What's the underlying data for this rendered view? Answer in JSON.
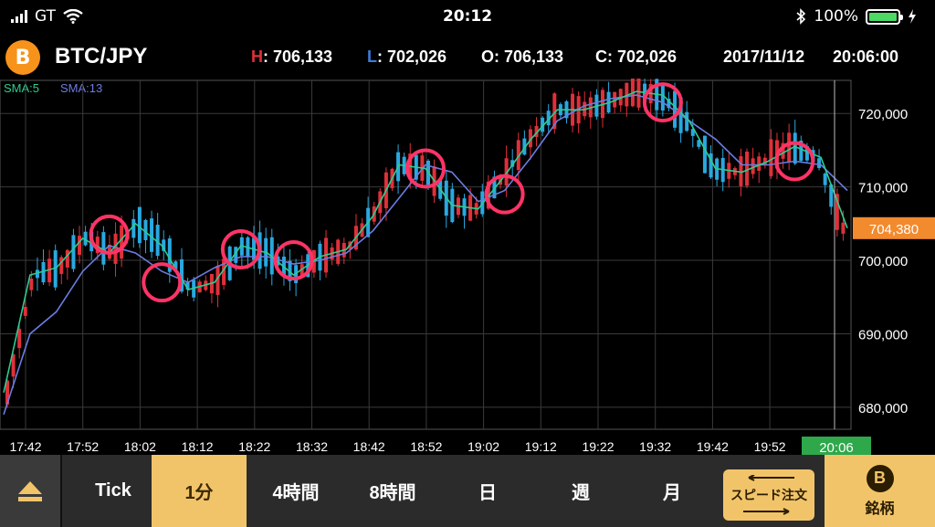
{
  "status_bar": {
    "carrier": "GT",
    "time": "20:12",
    "battery": "100%",
    "battery_level": 1.0
  },
  "header": {
    "coin_symbol": "B",
    "pair": "BTC/JPY",
    "high_label": "H",
    "high_value": ": 706,133",
    "low_label": "L",
    "low_value": ": 702,026",
    "open_text": "O: 706,133",
    "close_text": "C: 702,026",
    "date": "2017/11/12",
    "time": "20:06:00",
    "colors": {
      "high": "#e0303a",
      "low": "#3e7bd8"
    }
  },
  "indicators": {
    "sma5": "SMA:5",
    "sma13": "SMA:13",
    "colors": {
      "sma5": "#2ecc8f",
      "sma13": "#6b7de0"
    }
  },
  "chart_data": {
    "type": "line",
    "title": "",
    "x": [
      "17:42",
      "17:52",
      "18:02",
      "18:12",
      "18:22",
      "18:32",
      "18:42",
      "18:52",
      "19:02",
      "19:12",
      "19:22",
      "19:32",
      "19:42",
      "19:52",
      "20:06"
    ],
    "y_ticks": [
      "720,000",
      "710,000",
      "700,000",
      "690,000",
      "680,000"
    ],
    "ylim": [
      677000,
      724500
    ],
    "current_price": "704,380",
    "current_time": "20:06",
    "sma5_points": [
      [
        0,
        682000
      ],
      [
        1,
        698000
      ],
      [
        2,
        699000
      ],
      [
        3,
        703000
      ],
      [
        4,
        701000
      ],
      [
        5,
        705000
      ],
      [
        6,
        702000
      ],
      [
        7,
        696000
      ],
      [
        8,
        697000
      ],
      [
        9,
        702000
      ],
      [
        10,
        701000
      ],
      [
        11,
        698000
      ],
      [
        12,
        700500
      ],
      [
        13,
        701500
      ],
      [
        14,
        706000
      ],
      [
        15,
        713000
      ],
      [
        16,
        712500
      ],
      [
        17,
        707500
      ],
      [
        18,
        707000
      ],
      [
        19,
        711500
      ],
      [
        20,
        716500
      ],
      [
        21,
        720500
      ],
      [
        22,
        720500
      ],
      [
        23,
        721500
      ],
      [
        24,
        723000
      ],
      [
        25,
        722500
      ],
      [
        26,
        719000
      ],
      [
        27,
        712500
      ],
      [
        28,
        712000
      ],
      [
        29,
        713500
      ],
      [
        30,
        715500
      ],
      [
        31,
        714000
      ],
      [
        32,
        704380
      ]
    ],
    "sma13_points": [
      [
        0,
        679000
      ],
      [
        1,
        690000
      ],
      [
        2,
        693000
      ],
      [
        3,
        698500
      ],
      [
        4,
        702000
      ],
      [
        5,
        701000
      ],
      [
        6,
        698500
      ],
      [
        7,
        697000
      ],
      [
        8,
        699000
      ],
      [
        9,
        700500
      ],
      [
        10,
        700500
      ],
      [
        11,
        699500
      ],
      [
        12,
        700000
      ],
      [
        13,
        701000
      ],
      [
        14,
        704000
      ],
      [
        15,
        708500
      ],
      [
        16,
        713000
      ],
      [
        17,
        712000
      ],
      [
        18,
        708000
      ],
      [
        19,
        709500
      ],
      [
        20,
        714000
      ],
      [
        21,
        719000
      ],
      [
        22,
        721000
      ],
      [
        23,
        722000
      ],
      [
        24,
        722500
      ],
      [
        25,
        721500
      ],
      [
        26,
        719000
      ],
      [
        27,
        716500
      ],
      [
        28,
        713000
      ],
      [
        29,
        713000
      ],
      [
        30,
        713500
      ],
      [
        31,
        713000
      ],
      [
        32,
        709500
      ]
    ],
    "highlight_circles": [
      [
        4,
        703500
      ],
      [
        6,
        697000
      ],
      [
        9,
        701500
      ],
      [
        11,
        700000
      ],
      [
        16,
        712500
      ],
      [
        19,
        709000
      ],
      [
        25,
        721500
      ],
      [
        30,
        713500
      ]
    ],
    "colors": {
      "up": "#e0303a",
      "down": "#29a8e0",
      "grid": "#3a3a3a",
      "circle": "#ff3366",
      "price_tag": "#f28a2e",
      "time_tag": "#2ea84a"
    }
  },
  "toolbar": {
    "tick": "Tick",
    "m1": "1分",
    "h4": "4時間",
    "h8": "8時間",
    "day": "日",
    "week": "週",
    "month": "月",
    "speed_order": "スピード注文",
    "symbol_icon_letter": "B",
    "symbol": "銘柄"
  }
}
